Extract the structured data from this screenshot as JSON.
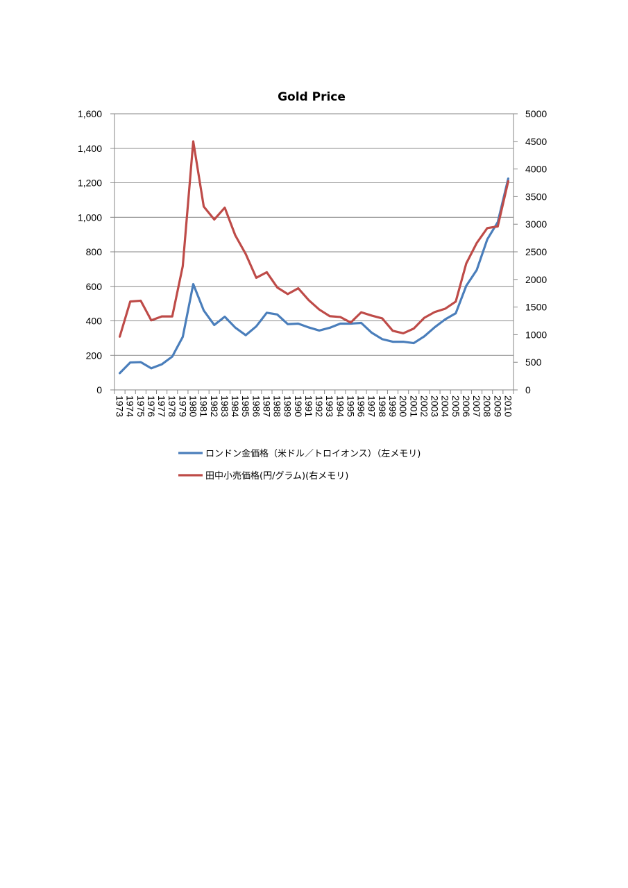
{
  "chart_data": {
    "type": "line",
    "title": "Gold Price",
    "categories": [
      "1973",
      "1974",
      "1975",
      "1976",
      "1977",
      "1978",
      "1979",
      "1980",
      "1981",
      "1982",
      "1983",
      "1984",
      "1985",
      "1986",
      "1987",
      "1988",
      "1989",
      "1990",
      "1991",
      "1992",
      "1993",
      "1994",
      "1995",
      "1996",
      "1997",
      "1998",
      "1999",
      "2000",
      "2001",
      "2002",
      "2003",
      "2004",
      "2005",
      "2006",
      "2007",
      "2008",
      "2009",
      "2010"
    ],
    "y_left": {
      "min": 0,
      "max": 1600,
      "ticks": [
        "0",
        "200",
        "400",
        "600",
        "800",
        "1,000",
        "1,200",
        "1,400",
        "1,600"
      ]
    },
    "y_right": {
      "min": 0,
      "max": 5000,
      "ticks": [
        "0",
        "500",
        "1000",
        "1500",
        "2000",
        "2500",
        "3000",
        "3500",
        "4000",
        "4500",
        "5000"
      ]
    },
    "grid": true,
    "legend_position": "bottom",
    "series": [
      {
        "name": "ロンドン金価格（米ドル／トロイオンス）（左メモリ)",
        "axis": "left",
        "color": "#4a7ebb",
        "values": [
          97,
          159,
          161,
          125,
          148,
          193,
          307,
          613,
          460,
          376,
          424,
          361,
          317,
          368,
          447,
          437,
          381,
          384,
          362,
          344,
          360,
          384,
          384,
          388,
          331,
          294,
          279,
          279,
          271,
          310,
          363,
          409,
          444,
          603,
          695,
          872,
          972,
          1225
        ]
      },
      {
        "name": "田中小売価格(円/グラム)(右メモリ)",
        "axis": "right",
        "color": "#be4b48",
        "values": [
          965,
          1600,
          1615,
          1260,
          1330,
          1330,
          2240,
          4500,
          3320,
          3085,
          3300,
          2800,
          2460,
          2030,
          2130,
          1855,
          1735,
          1840,
          1625,
          1455,
          1335,
          1320,
          1220,
          1405,
          1345,
          1295,
          1070,
          1025,
          1110,
          1305,
          1410,
          1470,
          1600,
          2290,
          2660,
          2930,
          2960,
          3780
        ]
      }
    ]
  }
}
